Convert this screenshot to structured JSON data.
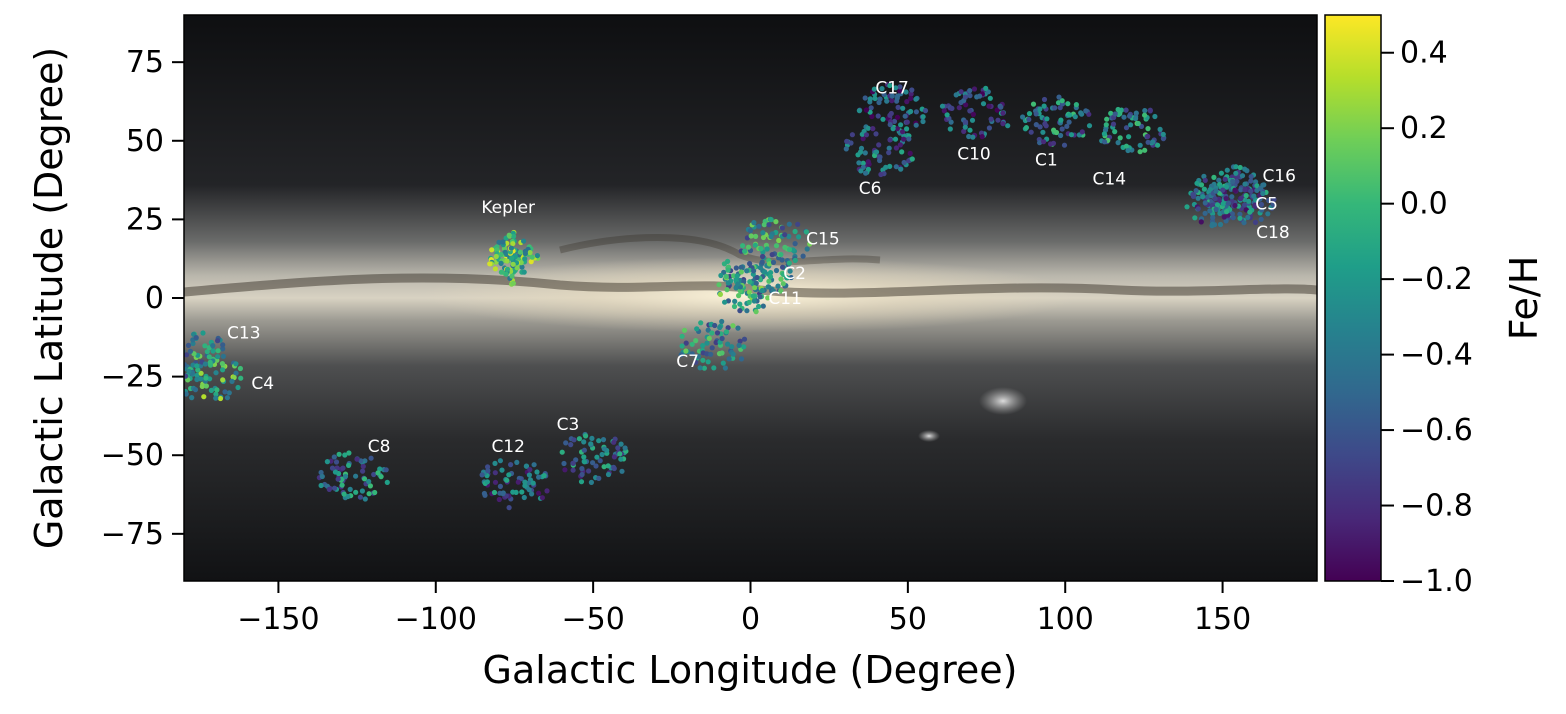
{
  "chart_data": {
    "type": "scatter",
    "title": "",
    "xlabel": "Galactic Longitude (Degree)",
    "ylabel": "Galactic Latitude (Degree)",
    "xlim": [
      -180,
      180
    ],
    "ylim": [
      -90,
      90
    ],
    "x_ticks": [
      -150,
      -100,
      -50,
      0,
      50,
      100,
      150
    ],
    "y_ticks": [
      75,
      50,
      25,
      0,
      -25,
      -50,
      -75
    ],
    "tick_text": {
      "x": [
        "−150",
        "−100",
        "−50",
        "0",
        "50",
        "100",
        "150"
      ],
      "y": [
        "75",
        "50",
        "25",
        "0",
        "−25",
        "−50",
        "−75"
      ]
    },
    "grid": false,
    "background": "all-sky Milky Way image",
    "colorbar": {
      "label": "Fe/H",
      "colormap": "viridis",
      "range": [
        -1.0,
        0.5
      ],
      "ticks": [
        0.4,
        0.2,
        0.0,
        -0.2,
        -0.4,
        -0.6,
        -0.8,
        -1.0
      ],
      "tick_text": [
        "0.4",
        "0.2",
        "0.0",
        "−0.2",
        "−0.4",
        "−0.6",
        "−0.8",
        "−1.0"
      ],
      "colors": [
        "#440154",
        "#482878",
        "#3e4989",
        "#31688e",
        "#26828e",
        "#1f9e89",
        "#35b779",
        "#6ece58",
        "#b5de2b",
        "#fde725"
      ]
    },
    "fields": [
      {
        "name": "C1",
        "l": 97,
        "b": 56,
        "feh": -0.4,
        "label": "C1",
        "label_l": 94,
        "label_b": 44
      },
      {
        "name": "C2",
        "l": 2,
        "b": 8,
        "feh": -0.3,
        "label": "C2",
        "label_l": 14,
        "label_b": 8
      },
      {
        "name": "C3",
        "l": -50,
        "b": -51,
        "feh": -0.45,
        "label": "C3",
        "label_l": -58,
        "label_b": -40
      },
      {
        "name": "C4",
        "l": -172,
        "b": -25,
        "feh": -0.1,
        "label": "C4",
        "label_l": -155,
        "label_b": -27
      },
      {
        "name": "C5",
        "l": 155,
        "b": 31,
        "feh": -0.5,
        "label": "C5",
        "label_l": 164,
        "label_b": 30
      },
      {
        "name": "C6",
        "l": 41,
        "b": 47,
        "feh": -0.5,
        "label": "C6",
        "label_l": 38,
        "label_b": 35
      },
      {
        "name": "C7",
        "l": -12,
        "b": -15,
        "feh": -0.3,
        "label": "C7",
        "label_l": -20,
        "label_b": -20
      },
      {
        "name": "C8",
        "l": -126,
        "b": -57,
        "feh": -0.4,
        "label": "C8",
        "label_l": -118,
        "label_b": -47
      },
      {
        "name": "C10",
        "l": 72,
        "b": 59,
        "feh": -0.6,
        "label": "C10",
        "label_l": 71,
        "label_b": 46
      },
      {
        "name": "C11",
        "l": 0,
        "b": 3,
        "feh": -0.2,
        "label": "C11",
        "label_l": 11,
        "label_b": 0
      },
      {
        "name": "C12",
        "l": -75,
        "b": -59,
        "feh": -0.5,
        "label": "C12",
        "label_l": -77,
        "label_b": -47
      },
      {
        "name": "C13",
        "l": -178,
        "b": -17,
        "feh": -0.3,
        "label": "C13",
        "label_l": -161,
        "label_b": -11
      },
      {
        "name": "C14",
        "l": 121,
        "b": 53,
        "feh": -0.35,
        "label": "C14",
        "label_l": 114,
        "label_b": 38
      },
      {
        "name": "C15",
        "l": 8,
        "b": 18,
        "feh": -0.25,
        "label": "C15",
        "label_l": 23,
        "label_b": 19
      },
      {
        "name": "C16",
        "l": 152,
        "b": 34,
        "feh": -0.45,
        "label": "C16",
        "label_l": 168,
        "label_b": 39
      },
      {
        "name": "C17",
        "l": 45,
        "b": 60,
        "feh": -0.6,
        "label": "C17",
        "label_l": 45,
        "label_b": 67
      },
      {
        "name": "C18",
        "l": 150,
        "b": 30,
        "feh": -0.5,
        "label": "C18",
        "label_l": 166,
        "label_b": 21
      },
      {
        "name": "Kepler",
        "l": -76,
        "b": 13,
        "feh": 0.0,
        "label": "Kepler",
        "label_l": -77,
        "label_b": 29
      }
    ]
  }
}
